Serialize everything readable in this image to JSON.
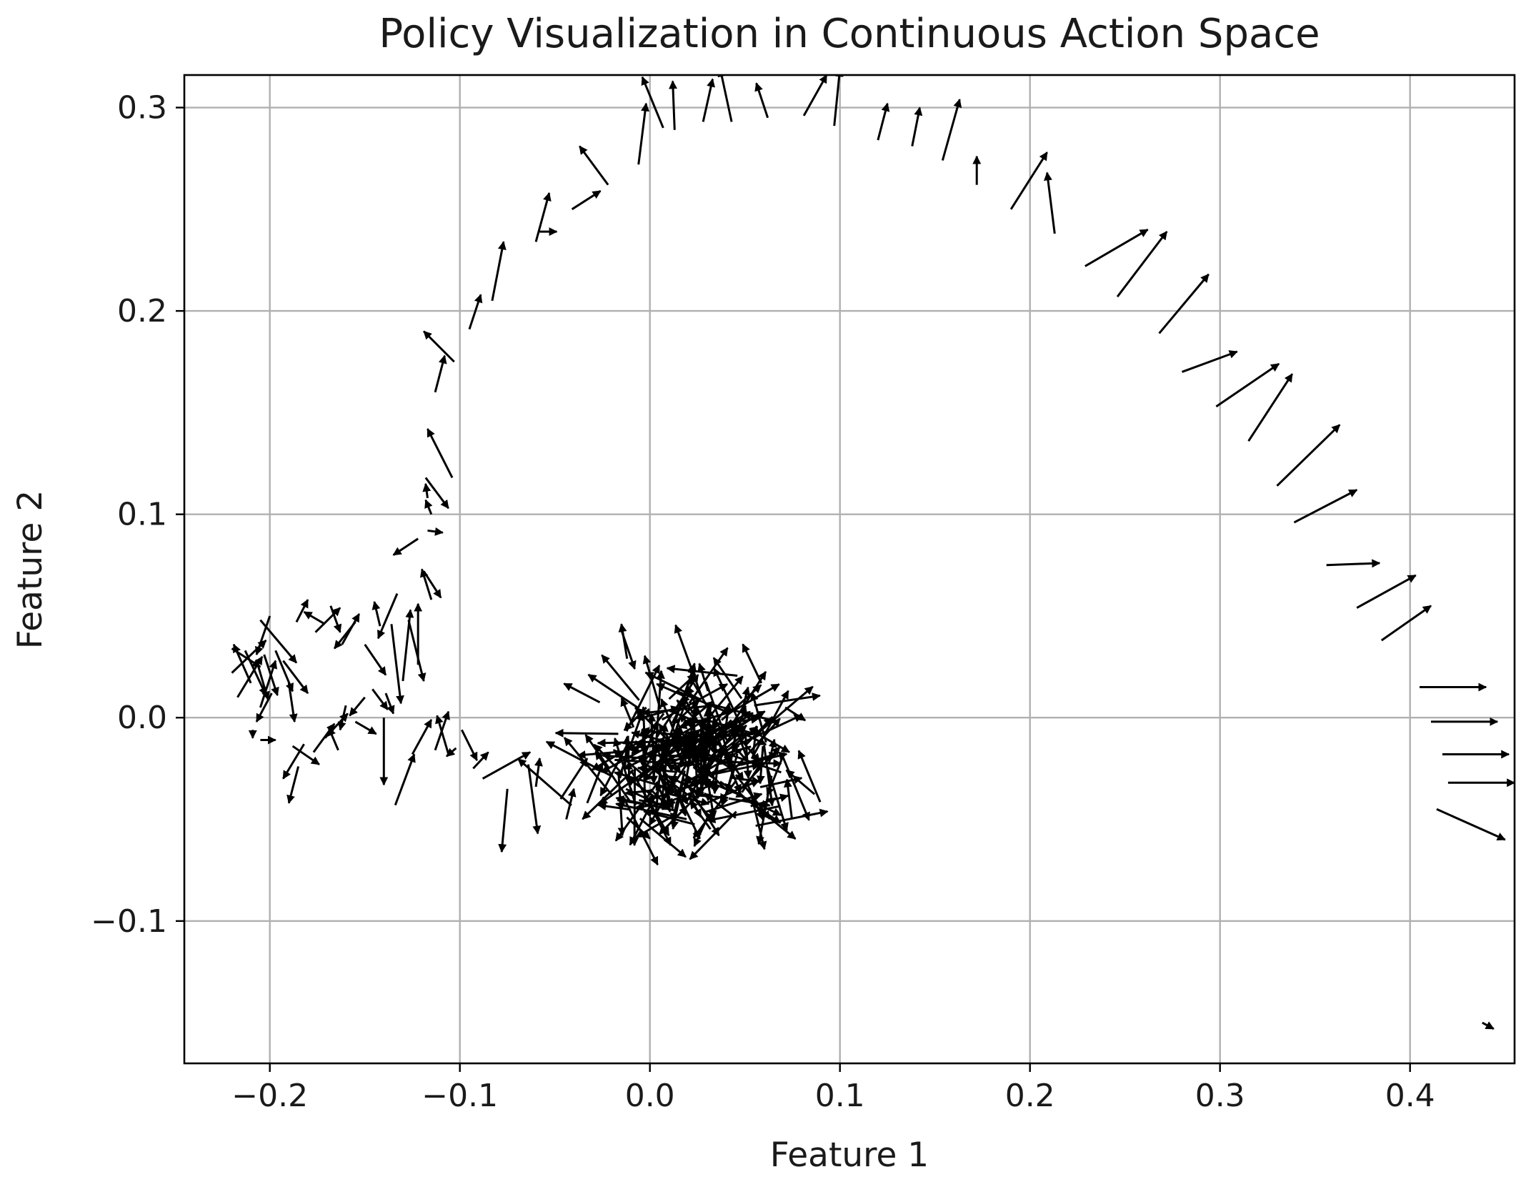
{
  "chart_data": {
    "type": "quiver",
    "title": "Policy Visualization in Continuous Action Space",
    "xlabel": "Feature 1",
    "ylabel": "Feature 2",
    "xlim": [
      -0.245,
      0.455
    ],
    "ylim": [
      -0.17,
      0.316
    ],
    "xticks": [
      -0.2,
      -0.1,
      0.0,
      0.1,
      0.2,
      0.3,
      0.4
    ],
    "xtick_labels": [
      "−0.2",
      "−0.1",
      "0.0",
      "0.1",
      "0.2",
      "0.3",
      "0.4"
    ],
    "yticks": [
      -0.1,
      0.0,
      0.1,
      0.2,
      0.3
    ],
    "ytick_labels": [
      "−0.1",
      "0.0",
      "0.1",
      "0.2",
      "0.3"
    ],
    "grid": true,
    "arrow_color": "#000000",
    "arrows": [
      [
        0.405,
        0.015,
        0.035,
        0.0
      ],
      [
        0.411,
        -0.002,
        0.035,
        0.0
      ],
      [
        0.417,
        -0.018,
        0.035,
        0.0
      ],
      [
        0.42,
        -0.032,
        0.035,
        0.0
      ],
      [
        0.414,
        -0.045,
        0.036,
        -0.015
      ],
      [
        0.438,
        -0.15,
        0.006,
        -0.003
      ],
      [
        0.385,
        0.038,
        0.026,
        0.017
      ],
      [
        0.372,
        0.054,
        0.031,
        0.016
      ],
      [
        0.356,
        0.075,
        0.028,
        0.001
      ],
      [
        0.339,
        0.096,
        0.033,
        0.016
      ],
      [
        0.33,
        0.114,
        0.033,
        0.03
      ],
      [
        0.315,
        0.136,
        0.023,
        0.033
      ],
      [
        0.298,
        0.153,
        0.033,
        0.021
      ],
      [
        0.28,
        0.17,
        0.029,
        0.01
      ],
      [
        0.268,
        0.189,
        0.026,
        0.029
      ],
      [
        0.246,
        0.207,
        0.026,
        0.032
      ],
      [
        0.229,
        0.222,
        0.033,
        0.018
      ],
      [
        0.213,
        0.238,
        -0.004,
        0.03
      ],
      [
        0.19,
        0.25,
        0.019,
        0.028
      ],
      [
        0.172,
        0.262,
        0.0,
        0.014
      ],
      [
        0.154,
        0.274,
        0.009,
        0.03
      ],
      [
        0.138,
        0.281,
        0.004,
        0.019
      ],
      [
        0.12,
        0.284,
        0.005,
        0.018
      ],
      [
        0.097,
        0.291,
        0.003,
        0.028
      ],
      [
        0.081,
        0.296,
        0.012,
        0.02
      ],
      [
        0.062,
        0.295,
        -0.006,
        0.017
      ],
      [
        0.043,
        0.293,
        -0.006,
        0.026
      ],
      [
        0.028,
        0.293,
        0.005,
        0.021
      ],
      [
        0.007,
        0.29,
        -0.011,
        0.025
      ],
      [
        0.013,
        0.289,
        -0.001,
        0.024
      ],
      [
        -0.006,
        0.272,
        0.004,
        0.03
      ],
      [
        -0.022,
        0.262,
        -0.015,
        0.019
      ],
      [
        -0.041,
        0.25,
        0.015,
        0.009
      ],
      [
        -0.06,
        0.234,
        0.007,
        0.024
      ],
      [
        -0.058,
        0.239,
        0.009,
        0.0
      ],
      [
        -0.083,
        0.205,
        0.006,
        0.029
      ],
      [
        -0.095,
        0.191,
        0.006,
        0.017
      ],
      [
        -0.113,
        0.16,
        0.005,
        0.018
      ],
      [
        -0.103,
        0.175,
        -0.016,
        0.015
      ],
      [
        -0.104,
        0.118,
        -0.013,
        0.024
      ],
      [
        -0.118,
        0.118,
        0.012,
        -0.015
      ],
      [
        -0.117,
        0.108,
        -0.001,
        0.007
      ],
      [
        -0.115,
        0.1,
        -0.003,
        0.007
      ],
      [
        -0.117,
        0.092,
        0.008,
        -0.001
      ],
      [
        -0.122,
        0.088,
        -0.013,
        -0.008
      ],
      [
        -0.115,
        0.058,
        -0.005,
        0.015
      ],
      [
        -0.119,
        0.072,
        0.009,
        -0.013
      ],
      [
        -0.122,
        0.026,
        0.0,
        0.03
      ],
      [
        -0.127,
        0.048,
        0.008,
        -0.03
      ],
      [
        -0.133,
        0.061,
        -0.01,
        -0.022
      ],
      [
        -0.136,
        0.046,
        0.005,
        -0.039
      ],
      [
        -0.142,
        0.045,
        -0.003,
        0.012
      ],
      [
        -0.15,
        0.036,
        0.011,
        -0.015
      ],
      [
        -0.155,
        0.047,
        -0.011,
        -0.013
      ],
      [
        -0.162,
        0.036,
        0.009,
        0.015
      ],
      [
        -0.168,
        0.055,
        0.005,
        -0.013
      ],
      [
        -0.171,
        0.046,
        -0.011,
        0.006
      ],
      [
        -0.176,
        0.042,
        0.013,
        0.012
      ],
      [
        -0.186,
        0.047,
        0.006,
        0.011
      ],
      [
        -0.2,
        0.05,
        -0.007,
        -0.019
      ],
      [
        -0.205,
        0.048,
        0.019,
        -0.021
      ],
      [
        -0.22,
        0.034,
        0.015,
        -0.009
      ],
      [
        -0.22,
        0.022,
        0.018,
        0.016
      ],
      [
        -0.217,
        0.01,
        0.013,
        0.02
      ],
      [
        -0.213,
        0.033,
        0.011,
        -0.022
      ],
      [
        -0.21,
        0.017,
        -0.009,
        0.019
      ],
      [
        -0.206,
        0.025,
        0.005,
        -0.016
      ],
      [
        -0.203,
        0.031,
        0.007,
        -0.02
      ],
      [
        -0.205,
        0.005,
        0.008,
        0.023
      ],
      [
        -0.199,
        0.012,
        -0.008,
        -0.014
      ],
      [
        -0.197,
        0.033,
        0.009,
        -0.02
      ],
      [
        -0.193,
        0.028,
        0.013,
        -0.016
      ],
      [
        -0.19,
        0.017,
        0.003,
        -0.019
      ],
      [
        -0.188,
        -0.014,
        0.014,
        -0.009
      ],
      [
        -0.185,
        -0.024,
        -0.005,
        -0.018
      ],
      [
        -0.182,
        -0.013,
        -0.011,
        -0.017
      ],
      [
        -0.177,
        -0.017,
        0.011,
        0.014
      ],
      [
        -0.171,
        -0.01,
        0.012,
        0.012
      ],
      [
        -0.164,
        -0.016,
        -0.005,
        0.011
      ],
      [
        -0.16,
        0.006,
        -0.003,
        -0.012
      ],
      [
        -0.155,
        -0.002,
        0.011,
        -0.006
      ],
      [
        -0.15,
        0.01,
        -0.008,
        -0.009
      ],
      [
        -0.146,
        0.014,
        0.008,
        -0.01
      ],
      [
        -0.139,
        0.012,
        0.004,
        -0.01
      ],
      [
        -0.205,
        -0.011,
        0.008,
        0.0
      ],
      [
        -0.209,
        -0.006,
        0.0,
        -0.004
      ],
      [
        -0.14,
        0.0,
        0.0,
        -0.033
      ],
      [
        -0.13,
        0.018,
        0.004,
        0.035
      ],
      [
        -0.134,
        -0.043,
        0.01,
        0.025
      ],
      [
        -0.125,
        -0.018,
        0.01,
        0.017
      ],
      [
        -0.113,
        -0.016,
        0.007,
        0.019
      ],
      [
        -0.106,
        -0.018,
        -0.006,
        0.019
      ],
      [
        -0.102,
        -0.015,
        -0.005,
        -0.004
      ],
      [
        -0.099,
        -0.006,
        0.008,
        -0.015
      ],
      [
        -0.093,
        -0.025,
        0.008,
        0.008
      ],
      [
        -0.088,
        -0.03,
        0.025,
        0.013
      ],
      [
        -0.075,
        -0.035,
        -0.003,
        -0.031
      ],
      [
        -0.064,
        -0.023,
        0.005,
        -0.034
      ],
      [
        -0.06,
        -0.034,
        0.002,
        0.014
      ],
      [
        -0.047,
        -0.04,
        0.014,
        0.02
      ],
      [
        -0.044,
        -0.05,
        0.004,
        0.015
      ],
      [
        -0.033,
        -0.042,
        0.008,
        0.019
      ],
      [
        -0.012,
        0.029,
        -0.003,
        0.017
      ],
      [
        -0.015,
        0.043,
        0.007,
        -0.019
      ],
      [
        0.002,
        -0.03,
        0.004,
        0.053
      ],
      [
        0.003,
        -0.048,
        0.005,
        0.045
      ]
    ],
    "cluster": {
      "center": [
        0.025,
        -0.02
      ],
      "spread": [
        0.04,
        0.03
      ],
      "count": 260,
      "seed": 17
    }
  }
}
